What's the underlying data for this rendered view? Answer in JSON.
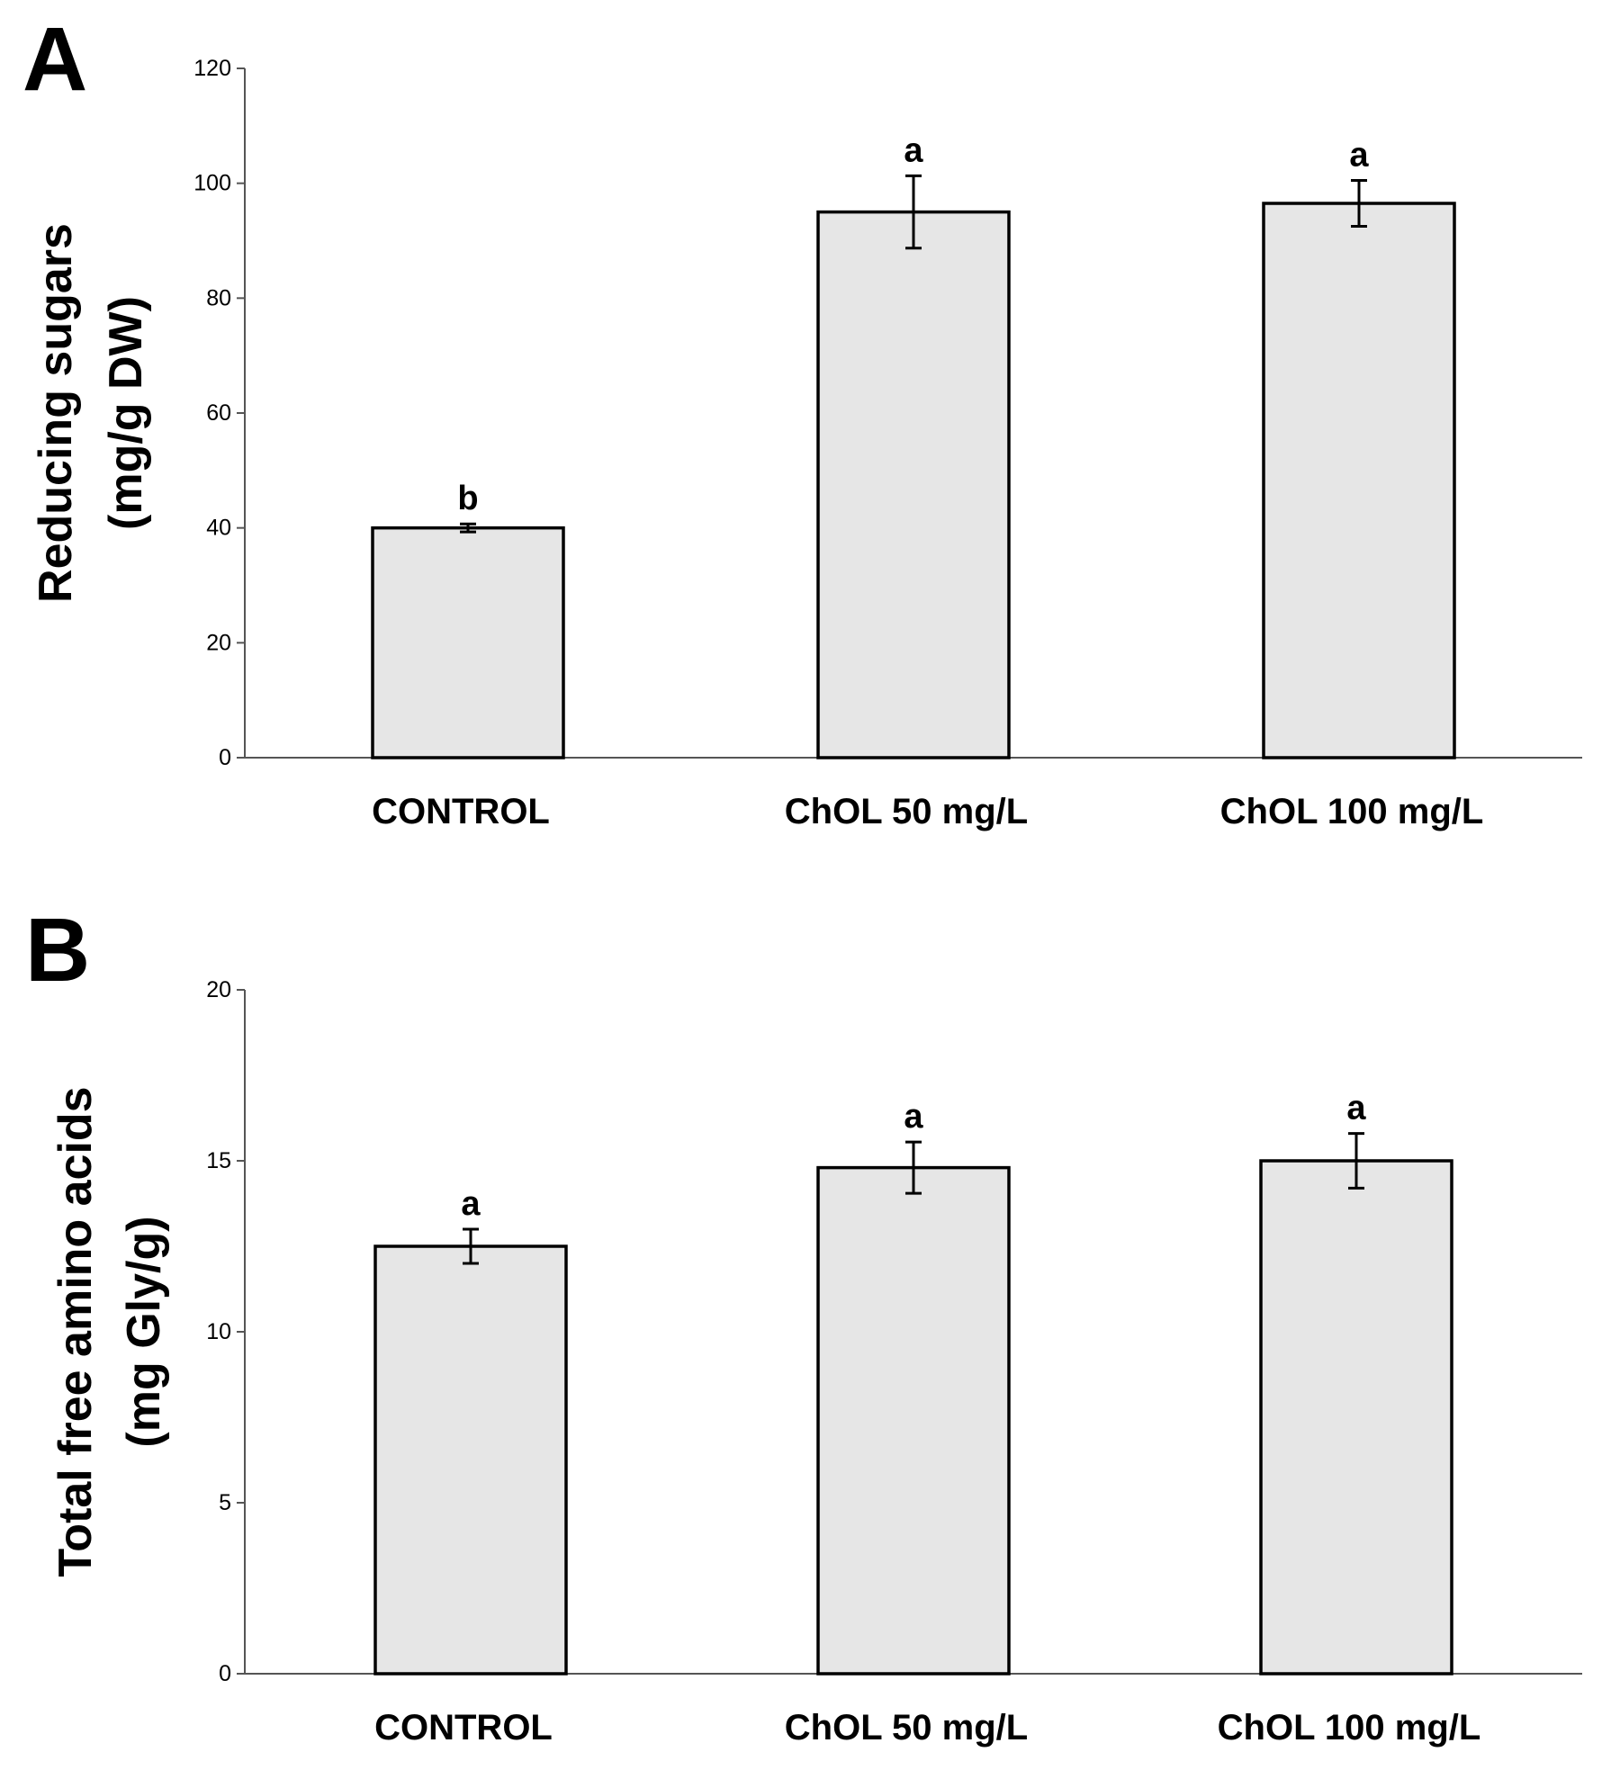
{
  "colors": {
    "bar_fill": "#e6e6e6",
    "bar_edge": "#000000",
    "axis": "#555555"
  },
  "chart_data": [
    {
      "type": "bar",
      "panel": "A",
      "title": "",
      "xlabel": "",
      "ylabel_lines": [
        "Reducing sugars",
        "(mg/g DW)"
      ],
      "categories": [
        "CONTROL",
        "ChOL 50 mg/L",
        "ChOL 100 mg/L"
      ],
      "values": [
        40,
        95,
        96.5
      ],
      "errors": [
        0.7,
        6.3,
        4.0
      ],
      "significance": [
        "b",
        "a",
        "a"
      ],
      "ylim": [
        0,
        120
      ],
      "yticks": [
        0,
        20,
        40,
        60,
        80,
        100,
        120
      ],
      "grid": false,
      "legend": "none"
    },
    {
      "type": "bar",
      "panel": "B",
      "title": "",
      "xlabel": "",
      "ylabel_lines": [
        "Total free amino acids",
        "(mg Gly/g)"
      ],
      "categories": [
        "CONTROL",
        "ChOL 50 mg/L",
        "ChOL 100 mg/L"
      ],
      "values": [
        12.5,
        14.8,
        15.0
      ],
      "errors": [
        0.5,
        0.75,
        0.8
      ],
      "significance": [
        "a",
        "a",
        "a"
      ],
      "ylim": [
        0,
        20
      ],
      "yticks": [
        0,
        5,
        10,
        15,
        20
      ],
      "grid": false,
      "legend": "none"
    }
  ]
}
